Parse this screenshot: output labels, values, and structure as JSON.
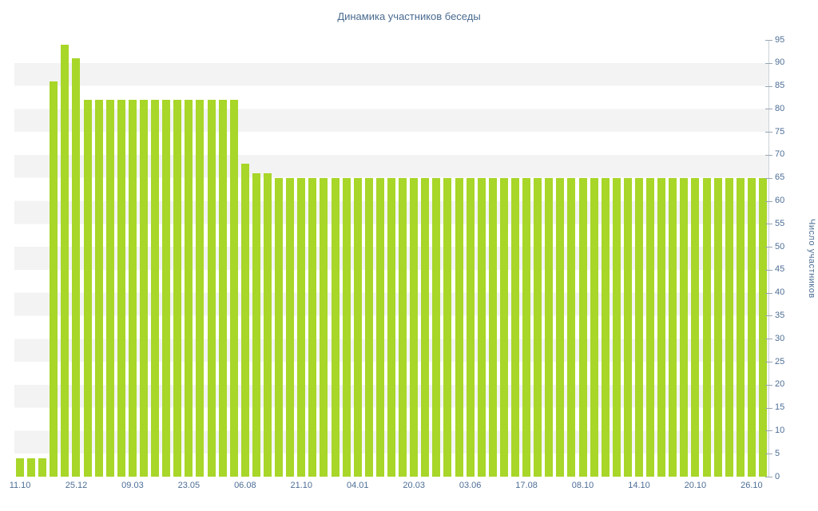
{
  "title": "Динамика участников беседы",
  "colors": {
    "bar": "#a8d629",
    "text": "#4d6e96",
    "band": "#f3f3f3",
    "axis_line": "#ccd2d8",
    "tick_mark": "#98a6b3"
  },
  "chart_data": {
    "type": "bar",
    "title": "Динамика участников беседы",
    "xlabel": "",
    "ylabel": "Число участников",
    "ylim": [
      0,
      95
    ],
    "tick_interval": 5,
    "y_axis_position": "right",
    "legend": "none",
    "grid": "alternating-horizontal-bands",
    "y_tick_labels": [
      "0",
      "5",
      "10",
      "15",
      "20",
      "25",
      "30",
      "35",
      "40",
      "45",
      "50",
      "55",
      "60",
      "65",
      "70",
      "75",
      "80",
      "85",
      "90",
      "95"
    ],
    "x_tick_labels": [
      "11.10",
      "25.12",
      "09.03",
      "23.05",
      "06.08",
      "21.10",
      "04.01",
      "20.03",
      "03.06",
      "17.08",
      "08.10",
      "14.10",
      "20.10",
      "26.10"
    ],
    "x_tick_every": 5,
    "values": [
      4,
      4,
      4,
      86,
      94,
      91,
      82,
      82,
      82,
      82,
      82,
      82,
      82,
      82,
      82,
      82,
      82,
      82,
      82,
      82,
      68,
      66,
      66,
      65,
      65,
      65,
      65,
      65,
      65,
      65,
      65,
      65,
      65,
      65,
      65,
      65,
      65,
      65,
      65,
      65,
      65,
      65,
      65,
      65,
      65,
      65,
      65,
      65,
      65,
      65,
      65,
      65,
      65,
      65,
      65,
      65,
      65,
      65,
      65,
      65,
      65,
      65,
      65,
      65,
      65,
      65,
      65
    ]
  }
}
